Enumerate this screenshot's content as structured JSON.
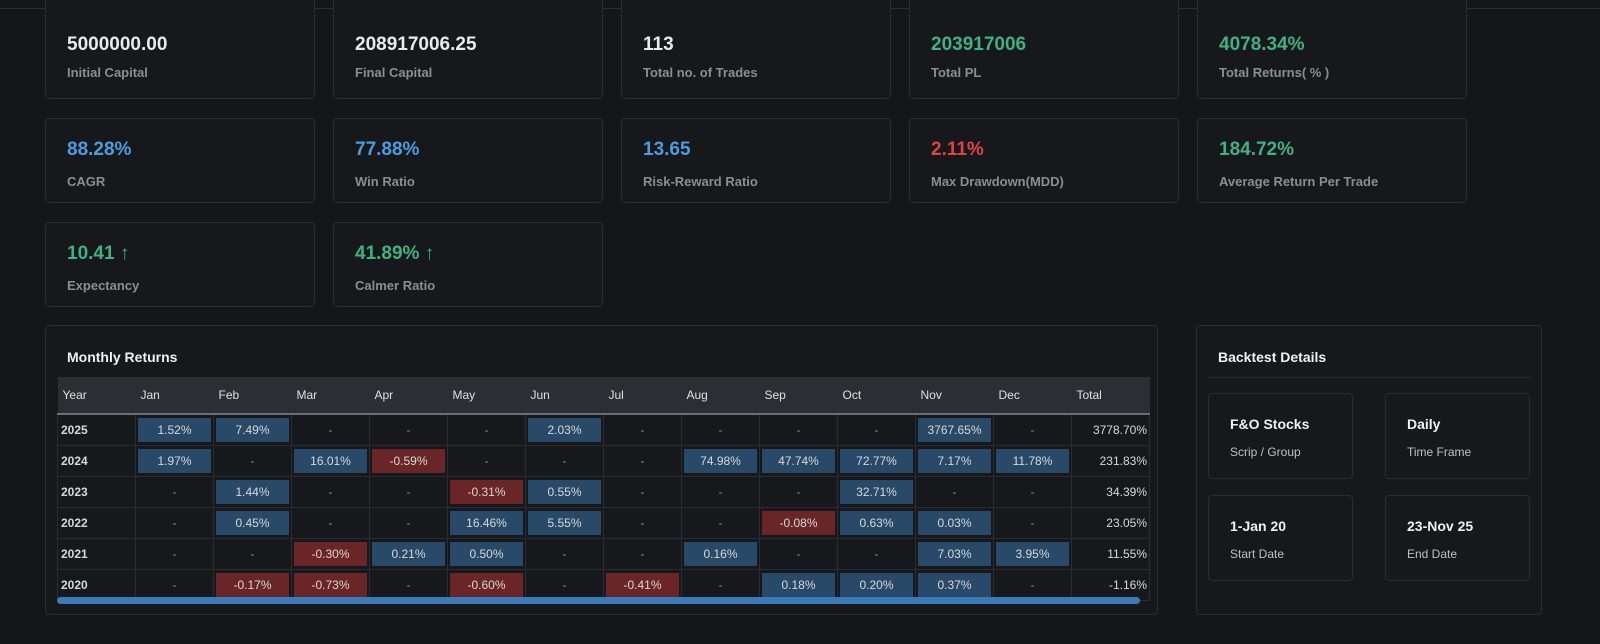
{
  "metrics": [
    {
      "value": "5000000.00",
      "label": "Initial Capital",
      "color": "white"
    },
    {
      "value": "208917006.25",
      "label": "Final Capital",
      "color": "white"
    },
    {
      "value": "113",
      "label": "Total no. of Trades",
      "color": "white"
    },
    {
      "value": "203917006",
      "label": "Total PL",
      "color": "green"
    },
    {
      "value": "4078.34%",
      "label": "Total Returns( % )",
      "color": "green"
    },
    {
      "value": "88.28%",
      "label": "CAGR",
      "color": "blue"
    },
    {
      "value": "77.88%",
      "label": "Win Ratio",
      "color": "blue"
    },
    {
      "value": "13.65",
      "label": "Risk-Reward Ratio",
      "color": "blue"
    },
    {
      "value": "2.11%",
      "label": "Max Drawdown(MDD)",
      "color": "red"
    },
    {
      "value": "184.72%",
      "label": "Average Return Per Trade",
      "color": "green"
    },
    {
      "value": "10.41 ↑",
      "label": "Expectancy",
      "color": "green"
    },
    {
      "value": "41.89% ↑",
      "label": "Calmer Ratio",
      "color": "green"
    }
  ],
  "monthly": {
    "title": "Monthly Returns",
    "headers": [
      "Year",
      "Jan",
      "Feb",
      "Mar",
      "Apr",
      "May",
      "Jun",
      "Jul",
      "Aug",
      "Sep",
      "Oct",
      "Nov",
      "Dec",
      "Total"
    ],
    "rows": [
      [
        "2025",
        "1.52%",
        "7.49%",
        "-",
        "-",
        "-",
        "2.03%",
        "-",
        "-",
        "-",
        "-",
        "3767.65%",
        "-",
        "3778.70%"
      ],
      [
        "2024",
        "1.97%",
        "-",
        "16.01%",
        "-0.59%",
        "-",
        "-",
        "-",
        "74.98%",
        "47.74%",
        "72.77%",
        "7.17%",
        "11.78%",
        "231.83%"
      ],
      [
        "2023",
        "-",
        "1.44%",
        "-",
        "-",
        "-0.31%",
        "0.55%",
        "-",
        "-",
        "-",
        "32.71%",
        "-",
        "-",
        "34.39%"
      ],
      [
        "2022",
        "-",
        "0.45%",
        "-",
        "-",
        "16.46%",
        "5.55%",
        "-",
        "-",
        "-0.08%",
        "0.63%",
        "0.03%",
        "-",
        "23.05%"
      ],
      [
        "2021",
        "-",
        "-",
        "-0.30%",
        "0.21%",
        "0.50%",
        "-",
        "-",
        "0.16%",
        "-",
        "-",
        "7.03%",
        "3.95%",
        "11.55%"
      ],
      [
        "2020",
        "-",
        "-0.17%",
        "-0.73%",
        "-",
        "-0.60%",
        "-",
        "-0.41%",
        "-",
        "0.18%",
        "0.20%",
        "0.37%",
        "-",
        "-1.16%"
      ]
    ]
  },
  "backtest": {
    "title": "Backtest Details",
    "items": [
      {
        "value": "F&O Stocks",
        "label": "Scrip / Group"
      },
      {
        "value": "Daily",
        "label": "Time Frame"
      },
      {
        "value": "1-Jan 20",
        "label": "Start Date"
      },
      {
        "value": "23-Nov 25",
        "label": "End Date"
      }
    ]
  }
}
